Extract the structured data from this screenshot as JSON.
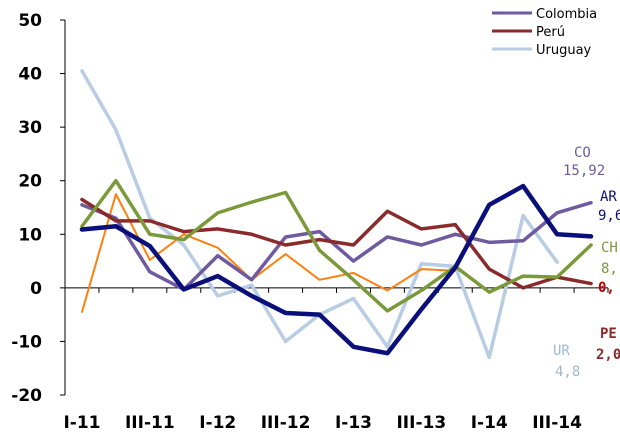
{
  "chart_data": {
    "type": "line",
    "ylim": [
      -20,
      50
    ],
    "yticks": [
      "50",
      "40",
      "30",
      "20",
      "10",
      "0",
      "-10",
      "-20"
    ],
    "xtick_labels": [
      "I-11",
      "III-11",
      "I-12",
      "III-12",
      "I-13",
      "III-13",
      "I-14",
      "III-14"
    ],
    "grid": false,
    "legend_position": "top-right",
    "series": [
      {
        "key": "argentina",
        "color": "#0a0f7a",
        "width": 4.5,
        "values": [
          10.9,
          11.5,
          7.8,
          -0.3,
          2.2,
          -1.5,
          -4.7,
          -5.0,
          -11.0,
          -12.2,
          -4.0,
          3.8,
          15.5,
          19.0,
          10.0,
          9.6
        ]
      },
      {
        "key": "chile",
        "color": "#7a9a3a",
        "width": 3.5,
        "values": [
          11.5,
          20.0,
          10.0,
          9.0,
          14.0,
          16.0,
          17.8,
          7.0,
          1.5,
          -4.3,
          -0.5,
          4.0,
          -0.8,
          2.2,
          2.0,
          8.0
        ]
      },
      {
        "key": "colombia",
        "color": "#6f5aa0",
        "width": 3.5,
        "name": "Colombia",
        "values": [
          15.5,
          13.0,
          3.0,
          -0.3,
          6.0,
          1.5,
          9.5,
          10.5,
          5.0,
          9.5,
          8.0,
          10.0,
          8.5,
          8.8,
          14.0,
          15.9
        ]
      },
      {
        "key": "peru",
        "color": "#8a2a2a",
        "width": 3.5,
        "name": "Perú",
        "values": [
          16.5,
          12.5,
          12.5,
          10.5,
          11.0,
          10.0,
          8.0,
          9.0,
          8.0,
          14.3,
          11.0,
          11.8,
          3.5,
          0.0,
          2.0,
          0.8
        ]
      },
      {
        "key": "uruguay",
        "color": "#b8cce4",
        "width": 3.5,
        "name": "Uruguay",
        "values": [
          40.5,
          29.5,
          13.0,
          8.0,
          -1.5,
          0.5,
          -10.0,
          -5.0,
          -2.0,
          -11.0,
          4.5,
          4.0,
          -13.0,
          13.5,
          4.8,
          null
        ]
      },
      {
        "key": "orange",
        "color": "#ff7f0e",
        "width": 2,
        "values": [
          -4.5,
          17.5,
          5.2,
          10.0,
          7.5,
          1.5,
          6.3,
          1.5,
          2.8,
          -0.5,
          3.5,
          3.2,
          null,
          null,
          null,
          null
        ]
      }
    ],
    "end_labels": [
      {
        "series": "colombia",
        "code": "CO",
        "value": "15,92",
        "color": "#6f5aa0",
        "bold": false
      },
      {
        "series": "argentina",
        "code": "AR",
        "value": "9,6",
        "color": "#0a0f7a",
        "bold": false
      },
      {
        "series": "chile",
        "code": "CH",
        "value": "8,",
        "color": "#7a9a3a",
        "bold": false
      },
      {
        "series": "peru",
        "code": "",
        "value": "0,",
        "color": "#c00000",
        "bold": true
      },
      {
        "series": "peru",
        "code": "PE",
        "value": "2,0",
        "color": "#8a2a2a",
        "bold": true
      },
      {
        "series": "uruguay",
        "code": "UR",
        "value": "4,8",
        "color": "#9fb8d8",
        "bold": false
      }
    ],
    "legend": [
      "Colombia",
      "Perú",
      "Uruguay"
    ]
  }
}
